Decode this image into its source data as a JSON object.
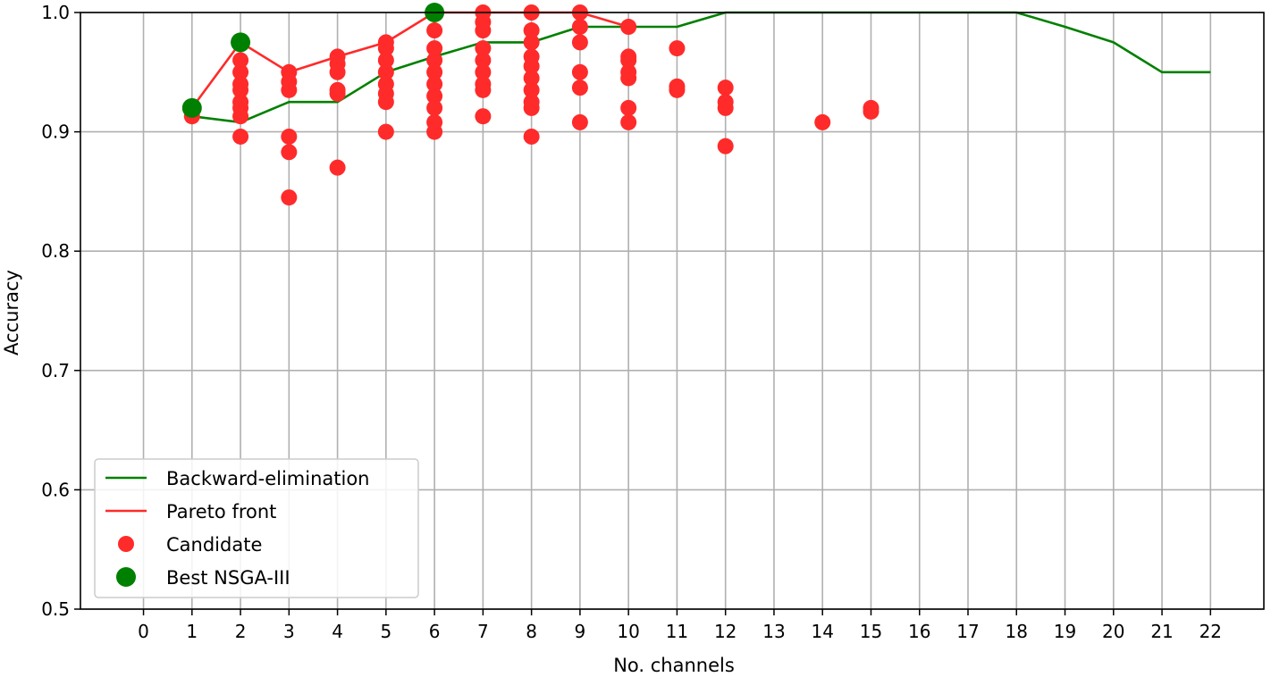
{
  "chart_data": {
    "type": "scatter",
    "xlabel": "No. channels",
    "ylabel": "Accuracy",
    "xlim": [
      -1.3,
      23.1
    ],
    "ylim": [
      0.5,
      1.0
    ],
    "xticks": [
      0,
      1,
      2,
      3,
      4,
      5,
      6,
      7,
      8,
      9,
      10,
      11,
      12,
      13,
      14,
      15,
      16,
      17,
      18,
      19,
      20,
      21,
      22
    ],
    "yticks": [
      0.5,
      0.6,
      0.7,
      0.8,
      0.9,
      1.0
    ],
    "ytick_labels": [
      "0.5",
      "0.6",
      "0.7",
      "0.8",
      "0.9",
      "1.0"
    ],
    "grid": true,
    "legend_position": "lower-left",
    "legend": [
      {
        "label": "Backward-elimination",
        "kind": "line",
        "color": "#008000"
      },
      {
        "label": "Pareto front",
        "kind": "line",
        "color": "#ff2a2a"
      },
      {
        "label": "Candidate",
        "kind": "marker",
        "color": "#ff2a2a"
      },
      {
        "label": "Best NSGA-III",
        "kind": "marker-large",
        "color": "#008000"
      }
    ],
    "series": [
      {
        "name": "Backward-elimination",
        "type": "line",
        "color": "#008000",
        "x": [
          1,
          2,
          3,
          4,
          5,
          6,
          7,
          8,
          9,
          10,
          11,
          12,
          13,
          14,
          15,
          16,
          17,
          18,
          19,
          20,
          21,
          22
        ],
        "y": [
          0.913,
          0.908,
          0.925,
          0.925,
          0.95,
          0.963,
          0.975,
          0.975,
          0.988,
          0.988,
          0.988,
          1.0,
          1.0,
          1.0,
          1.0,
          1.0,
          1.0,
          1.0,
          0.988,
          0.975,
          0.95,
          0.95
        ]
      },
      {
        "name": "Pareto front",
        "type": "line",
        "color": "#ff2a2a",
        "x": [
          1,
          2,
          3,
          4,
          5,
          6,
          7,
          8,
          9,
          10
        ],
        "y": [
          0.92,
          0.975,
          0.95,
          0.963,
          0.975,
          1.0,
          1.0,
          1.0,
          1.0,
          0.988
        ]
      },
      {
        "name": "Candidate",
        "type": "scatter",
        "color": "#ff2a2a",
        "points": [
          [
            1,
            0.913
          ],
          [
            1,
            0.92
          ],
          [
            2,
            0.896
          ],
          [
            2,
            0.913
          ],
          [
            2,
            0.92
          ],
          [
            2,
            0.925
          ],
          [
            2,
            0.935
          ],
          [
            2,
            0.94
          ],
          [
            2,
            0.95
          ],
          [
            2,
            0.96
          ],
          [
            2,
            0.975
          ],
          [
            3,
            0.845
          ],
          [
            3,
            0.883
          ],
          [
            3,
            0.896
          ],
          [
            3,
            0.935
          ],
          [
            3,
            0.942
          ],
          [
            3,
            0.95
          ],
          [
            4,
            0.87
          ],
          [
            4,
            0.932
          ],
          [
            4,
            0.935
          ],
          [
            4,
            0.95
          ],
          [
            4,
            0.957
          ],
          [
            4,
            0.963
          ],
          [
            5,
            0.9
          ],
          [
            5,
            0.925
          ],
          [
            5,
            0.932
          ],
          [
            5,
            0.94
          ],
          [
            5,
            0.95
          ],
          [
            5,
            0.96
          ],
          [
            5,
            0.97
          ],
          [
            5,
            0.975
          ],
          [
            6,
            0.9
          ],
          [
            6,
            0.908
          ],
          [
            6,
            0.92
          ],
          [
            6,
            0.93
          ],
          [
            6,
            0.94
          ],
          [
            6,
            0.95
          ],
          [
            6,
            0.96
          ],
          [
            6,
            0.97
          ],
          [
            6,
            0.985
          ],
          [
            6,
            1.0
          ],
          [
            7,
            0.913
          ],
          [
            7,
            0.935
          ],
          [
            7,
            0.94
          ],
          [
            7,
            0.95
          ],
          [
            7,
            0.96
          ],
          [
            7,
            0.97
          ],
          [
            7,
            0.985
          ],
          [
            7,
            0.992
          ],
          [
            7,
            1.0
          ],
          [
            8,
            0.896
          ],
          [
            8,
            0.92
          ],
          [
            8,
            0.925
          ],
          [
            8,
            0.935
          ],
          [
            8,
            0.945
          ],
          [
            8,
            0.955
          ],
          [
            8,
            0.963
          ],
          [
            8,
            0.975
          ],
          [
            8,
            0.985
          ],
          [
            8,
            1.0
          ],
          [
            9,
            0.908
          ],
          [
            9,
            0.937
          ],
          [
            9,
            0.95
          ],
          [
            9,
            0.975
          ],
          [
            9,
            0.988
          ],
          [
            9,
            1.0
          ],
          [
            10,
            0.908
          ],
          [
            10,
            0.92
          ],
          [
            10,
            0.945
          ],
          [
            10,
            0.95
          ],
          [
            10,
            0.96
          ],
          [
            10,
            0.963
          ],
          [
            10,
            0.988
          ],
          [
            11,
            0.935
          ],
          [
            11,
            0.938
          ],
          [
            11,
            0.97
          ],
          [
            12,
            0.888
          ],
          [
            12,
            0.92
          ],
          [
            12,
            0.925
          ],
          [
            12,
            0.937
          ],
          [
            14,
            0.908
          ],
          [
            15,
            0.917
          ],
          [
            15,
            0.92
          ]
        ]
      },
      {
        "name": "Best NSGA-III",
        "type": "scatter",
        "color": "#008000",
        "points": [
          [
            1,
            0.92
          ],
          [
            2,
            0.975
          ],
          [
            6,
            1.0
          ]
        ]
      }
    ]
  }
}
